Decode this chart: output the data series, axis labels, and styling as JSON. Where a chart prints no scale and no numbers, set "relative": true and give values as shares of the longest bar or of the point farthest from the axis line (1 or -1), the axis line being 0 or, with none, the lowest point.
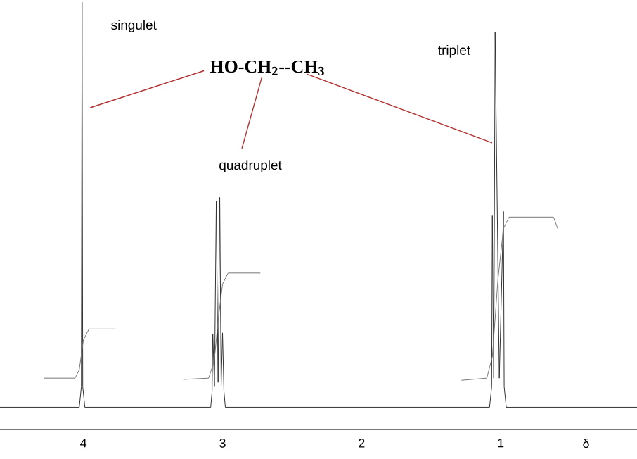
{
  "chart_data": {
    "type": "line",
    "relative": true,
    "xlim": [
      4.6,
      0.02
    ],
    "xticks": [
      4,
      3,
      2,
      1
    ],
    "xlabel": "δ",
    "series": [
      {
        "color": "#333333",
        "x": [
          4.6,
          4.03,
          4.015,
          4.01,
          4.005,
          3.99,
          3.085,
          3.075,
          3.07,
          3.058,
          3.045,
          3.032,
          3.02,
          3.01,
          3.0,
          2.99,
          2.98,
          1.08,
          1.065,
          1.06,
          1.05,
          1.04,
          1.01,
          0.98,
          0.975,
          0.96,
          0.02
        ],
        "values": [
          0.052,
          0.052,
          0.1,
          1,
          0.1,
          0.052,
          0.052,
          0.09,
          0.224,
          0.1,
          0.535,
          0.11,
          0.543,
          0.1,
          0.226,
          0.09,
          0.052,
          0.052,
          0.1,
          0.5,
          0.12,
          0.93,
          0.12,
          0.51,
          0.1,
          0.052,
          0.052
        ]
      },
      {
        "color": "#777777",
        "x": [
          4.28,
          4.06,
          4.03,
          4.0,
          3.96,
          3.77,
          3.5,
          3.28,
          3.1,
          3.06,
          3.03,
          3.0,
          2.96,
          2.73,
          2.0,
          1.28,
          1.1,
          1.06,
          1.02,
          0.98,
          0.94,
          0.62,
          0.59
        ],
        "values": [
          0.12,
          0.12,
          0.14,
          0.21,
          0.235,
          0.235,
          null,
          0.117,
          0.12,
          0.16,
          0.26,
          0.34,
          0.366,
          0.366,
          null,
          0.115,
          0.12,
          0.17,
          0.35,
          0.47,
          0.497,
          0.497,
          0.47
        ]
      }
    ],
    "annotations": [
      "singulet",
      "HO-CH$_{2}$--CH$_{3}$",
      "quadruplet",
      "triplet"
    ]
  }
}
